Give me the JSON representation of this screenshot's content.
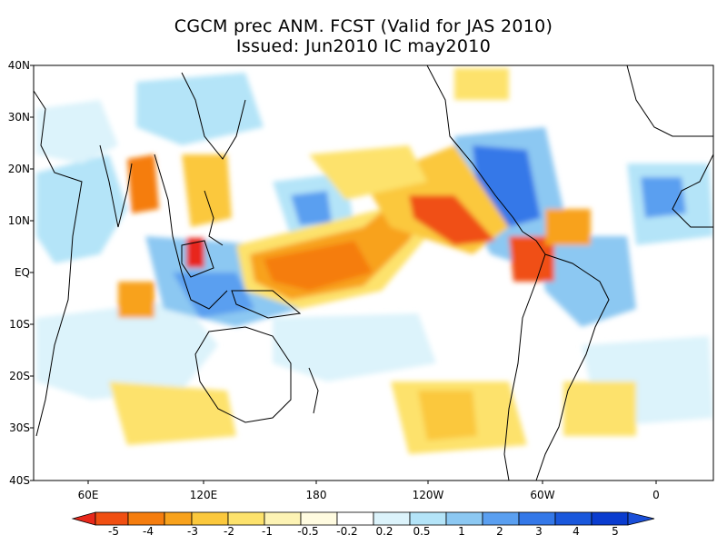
{
  "title": {
    "line1": "CGCM prec ANM. FCST  (Valid for JAS 2010)",
    "line2": "Issued:  Jun2010 IC may2010"
  },
  "map": {
    "lat_labels": [
      "40N",
      "30N",
      "20N",
      "10N",
      "EQ",
      "10S",
      "20S",
      "30S",
      "40S"
    ],
    "lon_labels": [
      "60E",
      "120E",
      "180",
      "120W",
      "60W",
      "0"
    ],
    "features": [
      {
        "name": "central-pacific-dry-anomaly",
        "value": -3
      },
      {
        "name": "east-pacific-dry-band",
        "value": -4
      },
      {
        "name": "caribbean-wet-anomaly",
        "value": 3
      },
      {
        "name": "maritime-continent-wet-anomaly",
        "value": 3
      },
      {
        "name": "amazon-wet-anomaly",
        "value": 2
      }
    ]
  },
  "colorbar": {
    "labels": [
      "-5",
      "-4",
      "-3",
      "-2",
      "-1",
      "-0.5",
      "-0.2",
      "0.2",
      "0.5",
      "1",
      "2",
      "3",
      "4",
      "5"
    ],
    "colors": [
      "#e8281b",
      "#f04f12",
      "#f57d0e",
      "#f8a21c",
      "#fbc83c",
      "#fde26c",
      "#fdf3b4",
      "#ffffff",
      "#dcf3fb",
      "#b4e4f8",
      "#8cc8f2",
      "#5a9ff0",
      "#3478e8",
      "#1a58dc",
      "#0a3ccf"
    ]
  }
}
